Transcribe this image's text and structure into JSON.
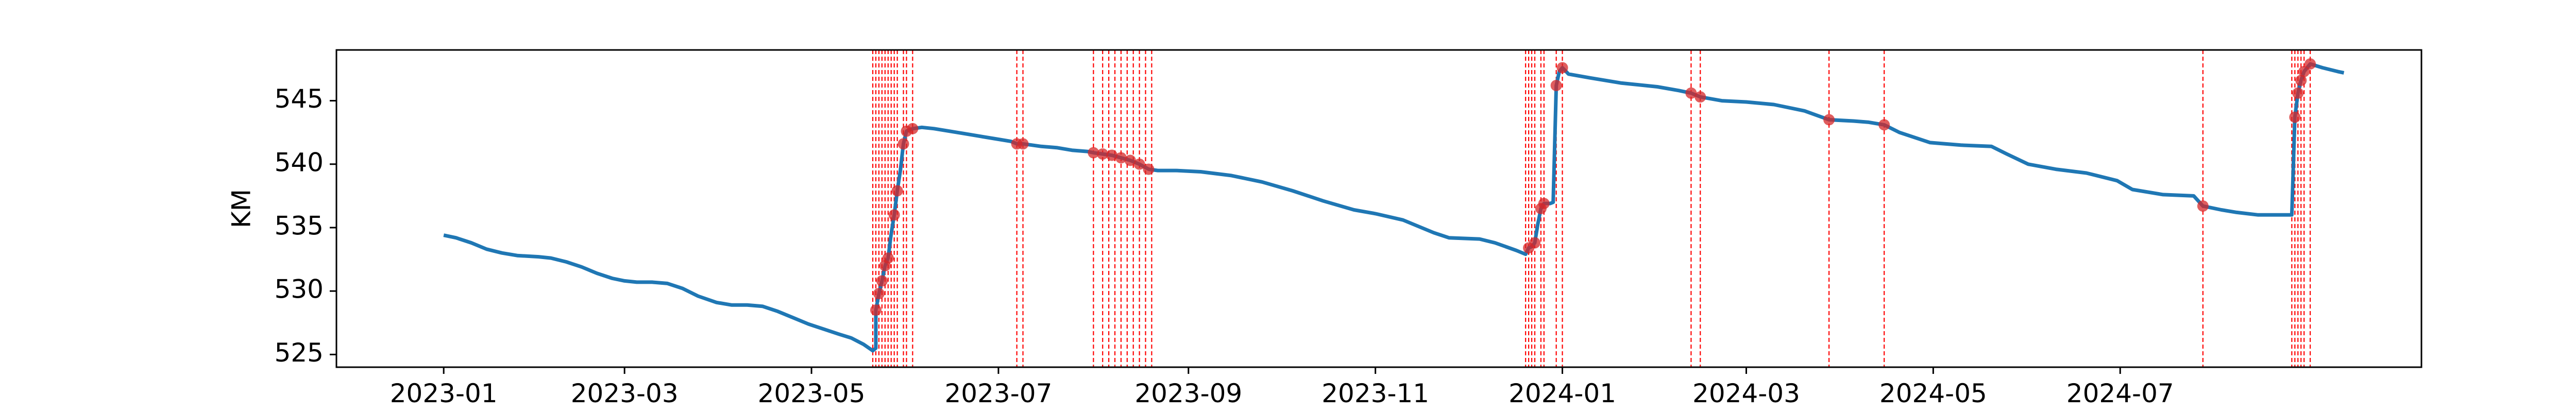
{
  "chart_data": {
    "type": "line",
    "ylabel": "KM",
    "xlabel": "",
    "title": "",
    "xlim": [
      "2022-11-27",
      "2024-08-15"
    ],
    "ylim": [
      524.0,
      549.0
    ],
    "x_ticks": [
      "2023-01",
      "2023-03",
      "2023-05",
      "2023-07",
      "2023-09",
      "2023-11",
      "2024-01",
      "2024-03",
      "2024-05",
      "2024-07"
    ],
    "y_ticks": [
      525,
      530,
      535,
      540,
      545
    ],
    "grid": false,
    "legend": "none",
    "colors": {
      "line": "#1f77b4",
      "marker": "#d62728",
      "vline": "#ff0000",
      "axis": "#000000"
    },
    "series": [
      {
        "points": [
          [
            "2023-01-01",
            534.4
          ],
          [
            "2023-01-05",
            534.2
          ],
          [
            "2023-01-10",
            533.8
          ],
          [
            "2023-01-15",
            533.3
          ],
          [
            "2023-01-20",
            533.0
          ],
          [
            "2023-01-25",
            532.8
          ],
          [
            "2023-02-01",
            532.7
          ],
          [
            "2023-02-05",
            532.6
          ],
          [
            "2023-02-10",
            532.3
          ],
          [
            "2023-02-15",
            531.9
          ],
          [
            "2023-02-20",
            531.4
          ],
          [
            "2023-02-25",
            531.0
          ],
          [
            "2023-03-01",
            530.8
          ],
          [
            "2023-03-05",
            530.7
          ],
          [
            "2023-03-10",
            530.7
          ],
          [
            "2023-03-15",
            530.6
          ],
          [
            "2023-03-20",
            530.2
          ],
          [
            "2023-03-25",
            529.6
          ],
          [
            "2023-03-31",
            529.1
          ],
          [
            "2023-04-05",
            528.9
          ],
          [
            "2023-04-10",
            528.9
          ],
          [
            "2023-04-15",
            528.8
          ],
          [
            "2023-04-20",
            528.4
          ],
          [
            "2023-04-25",
            527.9
          ],
          [
            "2023-04-30",
            527.4
          ],
          [
            "2023-05-05",
            527.0
          ],
          [
            "2023-05-10",
            526.6
          ],
          [
            "2023-05-14",
            526.3
          ],
          [
            "2023-05-18",
            525.8
          ],
          [
            "2023-05-21",
            525.3
          ],
          [
            "2023-05-22",
            525.5
          ],
          [
            "2023-05-22",
            528.5
          ],
          [
            "2023-05-23",
            529.8
          ],
          [
            "2023-05-24",
            530.8
          ],
          [
            "2023-05-25",
            532.0
          ],
          [
            "2023-05-26",
            532.6
          ],
          [
            "2023-05-27",
            534.5
          ],
          [
            "2023-05-28",
            536.0
          ],
          [
            "2023-05-29",
            537.9
          ],
          [
            "2023-05-30",
            539.5
          ],
          [
            "2023-05-31",
            541.6
          ],
          [
            "2023-06-01",
            542.6
          ],
          [
            "2023-06-03",
            542.8
          ],
          [
            "2023-06-06",
            542.9
          ],
          [
            "2023-06-10",
            542.8
          ],
          [
            "2023-06-15",
            542.6
          ],
          [
            "2023-06-20",
            542.4
          ],
          [
            "2023-06-25",
            542.2
          ],
          [
            "2023-06-30",
            542.0
          ],
          [
            "2023-07-05",
            541.8
          ],
          [
            "2023-07-07",
            541.6
          ],
          [
            "2023-07-09",
            541.6
          ],
          [
            "2023-07-15",
            541.4
          ],
          [
            "2023-07-20",
            541.3
          ],
          [
            "2023-07-25",
            541.1
          ],
          [
            "2023-07-30",
            541.0
          ],
          [
            "2023-08-01",
            540.9
          ],
          [
            "2023-08-04",
            540.8
          ],
          [
            "2023-08-07",
            540.7
          ],
          [
            "2023-08-10",
            540.5
          ],
          [
            "2023-08-13",
            540.3
          ],
          [
            "2023-08-16",
            540.0
          ],
          [
            "2023-08-19",
            539.6
          ],
          [
            "2023-08-22",
            539.5
          ],
          [
            "2023-08-28",
            539.5
          ],
          [
            "2023-09-05",
            539.4
          ],
          [
            "2023-09-15",
            539.1
          ],
          [
            "2023-09-25",
            538.6
          ],
          [
            "2023-10-05",
            537.9
          ],
          [
            "2023-10-15",
            537.1
          ],
          [
            "2023-10-25",
            536.4
          ],
          [
            "2023-11-01",
            536.1
          ],
          [
            "2023-11-10",
            535.6
          ],
          [
            "2023-11-20",
            534.6
          ],
          [
            "2023-11-25",
            534.2
          ],
          [
            "2023-12-05",
            534.1
          ],
          [
            "2023-12-10",
            533.8
          ],
          [
            "2023-12-17",
            533.2
          ],
          [
            "2023-12-20",
            532.9
          ],
          [
            "2023-12-21",
            533.4
          ],
          [
            "2023-12-22",
            533.5
          ],
          [
            "2023-12-23",
            533.8
          ],
          [
            "2023-12-24",
            535.3
          ],
          [
            "2023-12-25",
            536.5
          ],
          [
            "2023-12-26",
            536.9
          ],
          [
            "2023-12-28",
            536.9
          ],
          [
            "2023-12-29",
            537.0
          ],
          [
            "2023-12-30",
            546.2
          ],
          [
            "2023-12-31",
            547.3
          ],
          [
            "2024-01-01",
            547.6
          ],
          [
            "2024-01-03",
            547.1
          ],
          [
            "2024-01-10",
            546.8
          ],
          [
            "2024-01-20",
            546.4
          ],
          [
            "2024-02-01",
            546.1
          ],
          [
            "2024-02-08",
            545.8
          ],
          [
            "2024-02-12",
            545.6
          ],
          [
            "2024-02-15",
            545.3
          ],
          [
            "2024-02-22",
            545.0
          ],
          [
            "2024-03-01",
            544.9
          ],
          [
            "2024-03-10",
            544.7
          ],
          [
            "2024-03-20",
            544.2
          ],
          [
            "2024-03-28",
            543.5
          ],
          [
            "2024-04-05",
            543.4
          ],
          [
            "2024-04-10",
            543.3
          ],
          [
            "2024-04-15",
            543.1
          ],
          [
            "2024-04-20",
            542.5
          ],
          [
            "2024-04-30",
            541.7
          ],
          [
            "2024-05-10",
            541.5
          ],
          [
            "2024-05-20",
            541.4
          ],
          [
            "2024-05-25",
            540.8
          ],
          [
            "2024-06-01",
            540.0
          ],
          [
            "2024-06-10",
            539.6
          ],
          [
            "2024-06-20",
            539.3
          ],
          [
            "2024-06-30",
            538.7
          ],
          [
            "2024-07-05",
            538.0
          ],
          [
            "2024-07-15",
            537.6
          ],
          [
            "2024-07-25",
            537.5
          ],
          [
            "2024-07-28",
            536.7
          ],
          [
            "2024-08-03",
            536.4
          ],
          [
            "2024-08-08",
            536.2
          ],
          [
            "2024-08-15",
            536.0
          ],
          [
            "2024-08-20",
            536.0
          ],
          [
            "2024-08-26",
            536.0
          ],
          [
            "2024-08-27",
            543.7
          ],
          [
            "2024-08-28",
            545.6
          ],
          [
            "2024-08-29",
            546.6
          ],
          [
            "2024-08-30",
            547.3
          ],
          [
            "2024-09-01",
            547.9
          ],
          [
            "2024-09-05",
            547.6
          ],
          [
            "2024-09-10",
            547.3
          ],
          [
            "2024-09-12",
            547.2
          ]
        ]
      }
    ],
    "markers": [
      [
        "2023-05-22",
        528.5
      ],
      [
        "2023-05-23",
        529.8
      ],
      [
        "2023-05-24",
        530.8
      ],
      [
        "2023-05-25",
        532.0
      ],
      [
        "2023-05-26",
        532.6
      ],
      [
        "2023-05-28",
        536.0
      ],
      [
        "2023-05-29",
        537.9
      ],
      [
        "2023-05-31",
        541.6
      ],
      [
        "2023-06-01",
        542.6
      ],
      [
        "2023-06-03",
        542.8
      ],
      [
        "2023-07-07",
        541.6
      ],
      [
        "2023-07-09",
        541.6
      ],
      [
        "2023-08-01",
        540.9
      ],
      [
        "2023-08-04",
        540.8
      ],
      [
        "2023-08-07",
        540.7
      ],
      [
        "2023-08-10",
        540.5
      ],
      [
        "2023-08-13",
        540.3
      ],
      [
        "2023-08-16",
        540.0
      ],
      [
        "2023-08-19",
        539.6
      ],
      [
        "2023-12-21",
        533.4
      ],
      [
        "2023-12-23",
        533.8
      ],
      [
        "2023-12-25",
        536.5
      ],
      [
        "2023-12-26",
        536.9
      ],
      [
        "2023-12-30",
        546.2
      ],
      [
        "2024-01-01",
        547.6
      ],
      [
        "2024-02-12",
        545.6
      ],
      [
        "2024-02-15",
        545.3
      ],
      [
        "2024-03-28",
        543.5
      ],
      [
        "2024-04-15",
        543.1
      ],
      [
        "2024-07-28",
        536.7
      ],
      [
        "2024-08-27",
        543.7
      ],
      [
        "2024-08-28",
        545.6
      ],
      [
        "2024-08-29",
        546.6
      ],
      [
        "2024-08-30",
        547.3
      ],
      [
        "2024-09-01",
        547.9
      ]
    ],
    "vlines": [
      "2023-05-21",
      "2023-05-22",
      "2023-05-23",
      "2023-05-24",
      "2023-05-25",
      "2023-05-26",
      "2023-05-27",
      "2023-05-28",
      "2023-05-29",
      "2023-05-31",
      "2023-06-01",
      "2023-06-03",
      "2023-07-07",
      "2023-07-09",
      "2023-08-01",
      "2023-08-04",
      "2023-08-06",
      "2023-08-08",
      "2023-08-10",
      "2023-08-12",
      "2023-08-14",
      "2023-08-16",
      "2023-08-18",
      "2023-08-20",
      "2023-12-20",
      "2023-12-21",
      "2023-12-22",
      "2023-12-23",
      "2023-12-25",
      "2023-12-26",
      "2023-12-30",
      "2024-01-01",
      "2024-02-12",
      "2024-02-15",
      "2024-03-28",
      "2024-04-15",
      "2024-07-28",
      "2024-08-26",
      "2024-08-27",
      "2024-08-28",
      "2024-08-29",
      "2024-08-30",
      "2024-09-01"
    ]
  }
}
